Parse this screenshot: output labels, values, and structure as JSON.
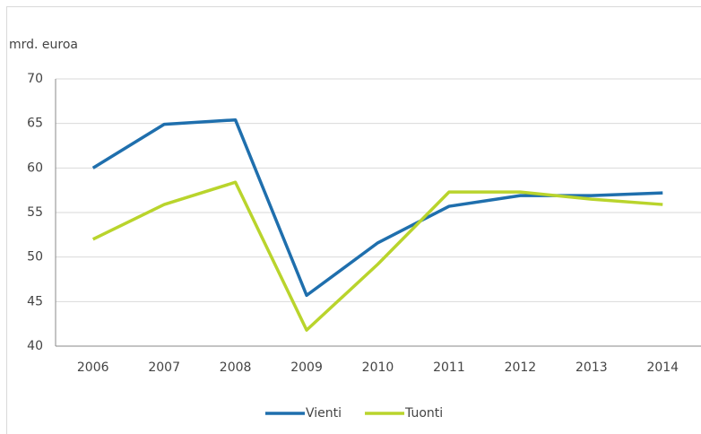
{
  "chart_data": {
    "type": "line",
    "y_label": "mrd. euroa",
    "categories": [
      "2006",
      "2007",
      "2008",
      "2009",
      "2010",
      "2011",
      "2012",
      "2013",
      "2014"
    ],
    "series": [
      {
        "name": "Vienti",
        "color": "#1f6fad",
        "values": [
          60.0,
          64.9,
          65.4,
          45.7,
          51.6,
          55.7,
          56.9,
          56.9,
          57.2
        ]
      },
      {
        "name": "Tuonti",
        "color": "#b9d42c",
        "values": [
          52.0,
          55.9,
          58.4,
          41.8,
          49.2,
          57.3,
          57.3,
          56.5,
          55.9
        ]
      }
    ],
    "ylim": [
      40,
      70
    ],
    "yticks": [
      40,
      45,
      50,
      55,
      60,
      65,
      70
    ],
    "grid": true,
    "legend": "bottom"
  }
}
